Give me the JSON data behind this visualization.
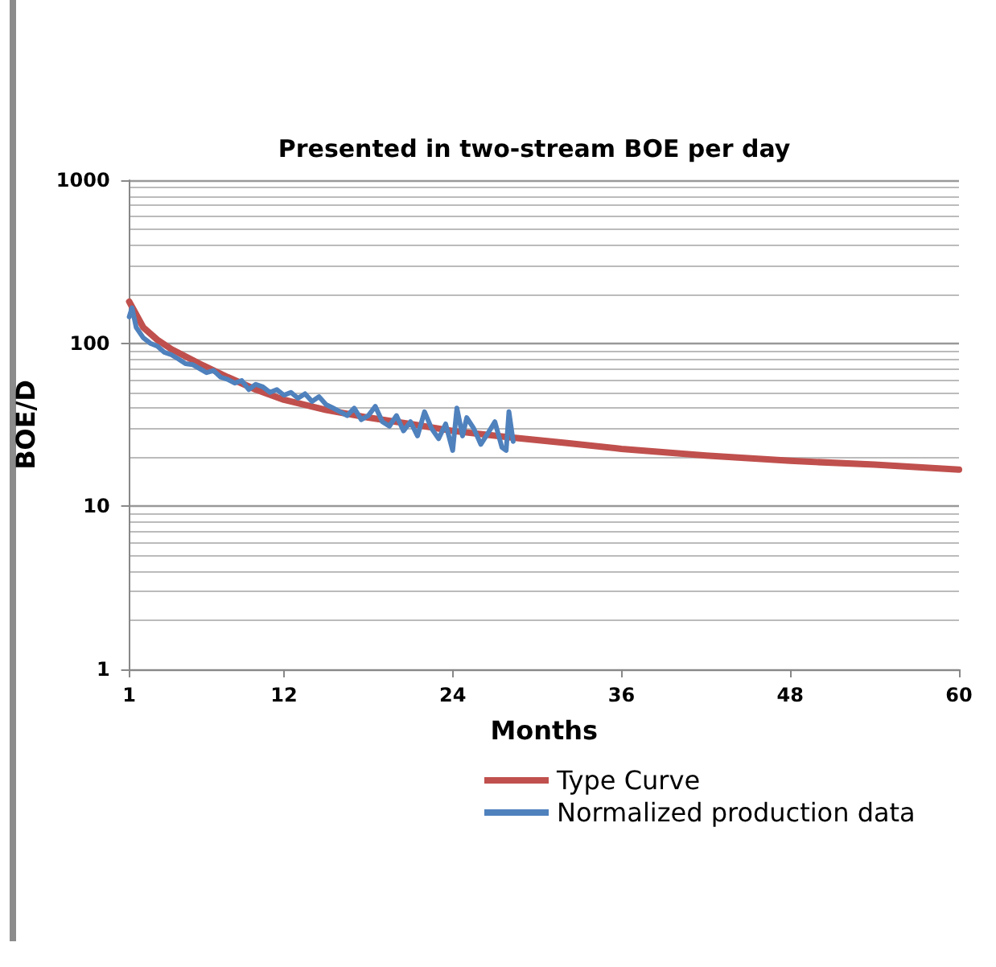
{
  "chart_data": {
    "type": "line",
    "title": "Presented in two-stream BOE per day",
    "xlabel": "Months",
    "ylabel": "BOE/D",
    "log": "y",
    "grid": "y",
    "legend": "bottom",
    "marker": "none",
    "line_style": "solid",
    "xlim": [
      1,
      60
    ],
    "xticks": [
      1,
      12,
      24,
      36,
      48,
      60
    ],
    "ylim": [
      1,
      1000
    ],
    "yticks": [
      1,
      10,
      100,
      1000
    ],
    "series": [
      {
        "name": "Type Curve",
        "color": "#c0504d",
        "x": [
          1,
          1.5,
          2,
          3,
          4,
          6,
          8,
          10,
          12,
          15,
          18,
          21,
          24,
          28,
          32,
          36,
          42,
          48,
          54,
          60
        ],
        "values": [
          180,
          150,
          125,
          105,
          92,
          75,
          62,
          52,
          45,
          39,
          35,
          32,
          29,
          26.5,
          24.5,
          22.5,
          20.5,
          19,
          18,
          16.8
        ]
      },
      {
        "name": "Normalized production data",
        "color": "#4f81bd",
        "x": [
          1,
          1.2,
          1.5,
          2,
          2.5,
          3,
          3.5,
          4,
          4.5,
          5,
          5.5,
          6,
          6.5,
          7,
          7.5,
          8,
          8.5,
          9,
          9.5,
          10,
          10.5,
          11,
          11.5,
          12,
          12.5,
          13,
          13.5,
          14,
          14.5,
          15,
          15.5,
          16,
          16.5,
          17,
          17.5,
          18,
          18.5,
          19,
          19.5,
          20,
          20.5,
          21,
          21.5,
          22,
          22.5,
          23,
          23.5,
          24,
          24.3,
          24.7,
          25,
          25.5,
          26,
          26.5,
          27,
          27.5,
          27.8,
          28,
          28.3
        ],
        "values": [
          145,
          165,
          125,
          108,
          100,
          96,
          88,
          85,
          80,
          75,
          74,
          70,
          66,
          68,
          62,
          60,
          57,
          59,
          52,
          56,
          54,
          50,
          52,
          48,
          50,
          46,
          49,
          44,
          47,
          42,
          40,
          38,
          36,
          40,
          34,
          36,
          41,
          33,
          31,
          36,
          29,
          33,
          27,
          38,
          30,
          26,
          32,
          22,
          40,
          27,
          35,
          30,
          24,
          28,
          33,
          23,
          22,
          38,
          25
        ]
      }
    ]
  }
}
